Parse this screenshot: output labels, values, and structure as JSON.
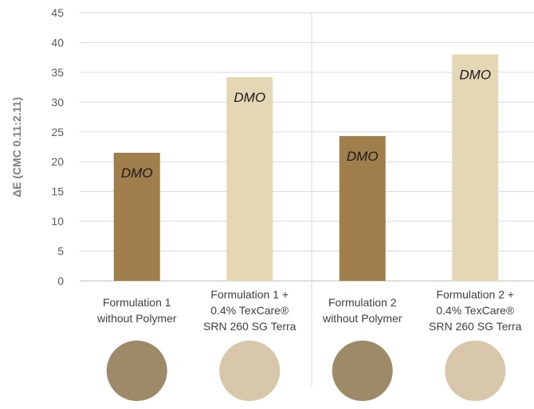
{
  "chart_data": {
    "type": "bar",
    "ylabel": "ΔE (CMC 0.11:2.11)",
    "ylim": [
      0,
      45
    ],
    "yticks": [
      0,
      5,
      10,
      15,
      20,
      25,
      30,
      35,
      40,
      45
    ],
    "grid": true,
    "categories": [
      [
        "Formulation 1",
        "without Polymer"
      ],
      [
        "Formulation 1 +",
        "0.4% TexCare®",
        "SRN 260 SG Terra"
      ],
      [
        "Formulation 2",
        "without Polymer"
      ],
      [
        "Formulation 2 +",
        "0.4% TexCare®",
        "SRN 260 SG Terra"
      ]
    ],
    "values": [
      21.5,
      34.2,
      24.3,
      38.0
    ],
    "data_labels": [
      "DMO",
      "DMO",
      "DMO",
      "DMO"
    ],
    "colors": [
      "#a07f4c",
      "#e4d7b5",
      "#a07f4c",
      "#e4d7b5"
    ],
    "swatch_colors": [
      "#a08d6b",
      "#dccbad",
      "#a08d6b",
      "#dccbad"
    ],
    "group_separator_after_index": 1
  }
}
